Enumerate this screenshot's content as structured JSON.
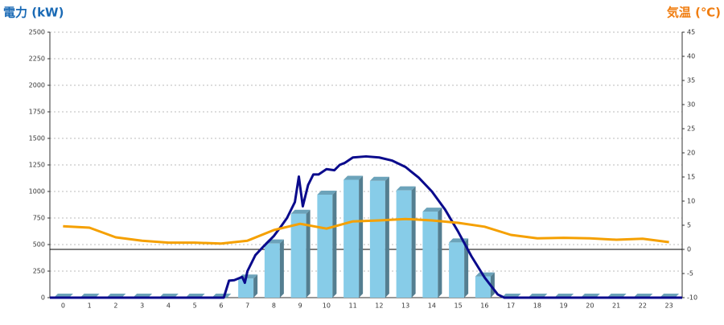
{
  "chart_data": {
    "type": "bar",
    "title": "電力 (kW)",
    "y2_title": "気温 (℃)",
    "categories": [
      "0",
      "1",
      "2",
      "3",
      "4",
      "5",
      "6",
      "7",
      "8",
      "9",
      "10",
      "11",
      "12",
      "13",
      "14",
      "15",
      "16",
      "17",
      "18",
      "19",
      "20",
      "21",
      "22",
      "23"
    ],
    "ylim": [
      0,
      2500
    ],
    "yticks": [
      0,
      250,
      500,
      750,
      1000,
      1250,
      1500,
      1750,
      2000,
      2250,
      2500
    ],
    "y2lim": [
      -10,
      45
    ],
    "y2ticks": [
      -10,
      -5,
      0,
      5,
      10,
      15,
      20,
      25,
      30,
      35,
      40,
      45
    ],
    "xlim": [
      -0.5,
      23.5
    ],
    "grid": true,
    "y2_zero_line": true,
    "series": [
      {
        "type": "bar",
        "color": "#87cce8",
        "values": [
          0,
          0,
          0,
          0,
          0,
          0,
          0,
          180,
          510,
          790,
          970,
          1110,
          1100,
          1010,
          810,
          520,
          200,
          0,
          0,
          0,
          0,
          0,
          0,
          0
        ]
      },
      {
        "type": "line",
        "color": "#0a0a8c",
        "x": [
          -0.5,
          6.1,
          6.3,
          6.5,
          6.8,
          6.9,
          7.0,
          7.3,
          7.6,
          8.0,
          8.3,
          8.5,
          8.8,
          8.95,
          9.1,
          9.3,
          9.5,
          9.7,
          10.0,
          10.3,
          10.5,
          10.7,
          11.0,
          11.5,
          12.0,
          12.5,
          13.0,
          13.5,
          14.0,
          14.5,
          15.0,
          15.5,
          16.0,
          16.5,
          16.75,
          23.5
        ],
        "values": [
          0,
          0,
          160,
          165,
          195,
          140,
          250,
          400,
          480,
          580,
          680,
          750,
          900,
          1140,
          860,
          1060,
          1160,
          1160,
          1210,
          1200,
          1250,
          1270,
          1320,
          1330,
          1320,
          1290,
          1230,
          1130,
          1000,
          830,
          620,
          390,
          190,
          30,
          0,
          0
        ]
      },
      {
        "type": "line",
        "axis": "y2",
        "color": "#f5a000",
        "values": [
          4.8,
          4.5,
          2.5,
          1.8,
          1.4,
          1.4,
          1.2,
          1.8,
          4.0,
          5.3,
          4.3,
          5.8,
          6.0,
          6.3,
          6.0,
          5.5,
          4.7,
          3.0,
          2.3,
          2.4,
          2.3,
          2.0,
          2.2,
          1.5
        ]
      }
    ]
  }
}
